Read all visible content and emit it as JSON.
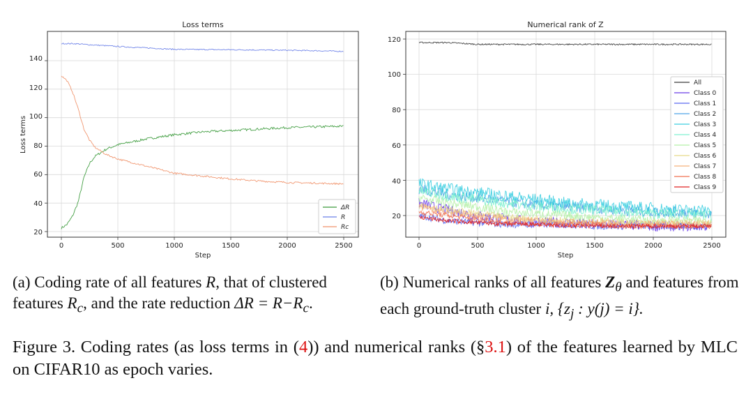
{
  "charts": {
    "left": {
      "title": "Loss terms",
      "xlabel": "Step",
      "ylabel": "Loss terms",
      "xticks": [
        "0",
        "500",
        "1000",
        "1500",
        "2000",
        "2500"
      ],
      "yticks": [
        "20",
        "40",
        "60",
        "80",
        "100",
        "120",
        "140"
      ],
      "legend": [
        "ΔR",
        "R",
        "Rc"
      ]
    },
    "right": {
      "title": "Numerical rank of Z",
      "xlabel": "Step",
      "xticks": [
        "0",
        "500",
        "1000",
        "1500",
        "2000",
        "2500"
      ],
      "yticks": [
        "20",
        "40",
        "60",
        "80",
        "100",
        "120"
      ],
      "legend": [
        "All",
        "Class 0",
        "Class 1",
        "Class 2",
        "Class 3",
        "Class 4",
        "Class 5",
        "Class 6",
        "Class 7",
        "Class 8",
        "Class 9"
      ]
    }
  },
  "chart_data": [
    {
      "type": "line",
      "title": "Loss terms",
      "xlabel": "Step",
      "ylabel": "Loss terms",
      "xlim": [
        0,
        2500
      ],
      "ylim": [
        18,
        158
      ],
      "grid": true,
      "legend_position": "bottom-right",
      "x": [
        0,
        50,
        100,
        150,
        200,
        250,
        300,
        400,
        500,
        750,
        1000,
        1250,
        1500,
        1750,
        2000,
        2250,
        2500
      ],
      "series": [
        {
          "name": "ΔR",
          "color": "#3a9a3a",
          "values": [
            22.5,
            25,
            31,
            41,
            58,
            68,
            73,
            78,
            81,
            85,
            88,
            90,
            91,
            92,
            93,
            93.5,
            94
          ]
        },
        {
          "name": "R",
          "color": "#6a7fe8",
          "values": [
            152,
            152,
            152,
            151.8,
            151.5,
            151.2,
            151,
            150.5,
            150,
            149,
            148,
            147.8,
            147.7,
            147.5,
            147.3,
            147,
            146.5
          ]
        },
        {
          "name": "Rc",
          "color": "#f0926a",
          "values": [
            129.5,
            126,
            118,
            106,
            92,
            84,
            79,
            74,
            71,
            66,
            61,
            59,
            57,
            55.5,
            54.5,
            54,
            53.5
          ]
        }
      ]
    },
    {
      "type": "line",
      "title": "Numerical rank of Z",
      "xlabel": "Step",
      "xlim": [
        0,
        2500
      ],
      "ylim": [
        9,
        122
      ],
      "grid": true,
      "legend_position": "top-right",
      "x": [
        0,
        250,
        500,
        750,
        1000,
        1250,
        1500,
        1750,
        2000,
        2250,
        2500
      ],
      "series": [
        {
          "name": "All",
          "color": "#3a3a3a",
          "values": [
            118,
            118,
            117,
            117,
            117,
            117,
            117,
            117,
            117,
            117,
            117
          ]
        },
        {
          "name": "Class 0",
          "color": "#6a3de8",
          "values": [
            27,
            23,
            20,
            18,
            16,
            16,
            15,
            15,
            14,
            14,
            14
          ]
        },
        {
          "name": "Class 1",
          "color": "#5a6af0",
          "values": [
            20,
            17,
            16,
            15,
            15,
            15,
            14,
            14,
            14,
            14,
            14
          ]
        },
        {
          "name": "Class 2",
          "color": "#4da3e6",
          "values": [
            35,
            32,
            30,
            28,
            26,
            25,
            24,
            23,
            22,
            22,
            21
          ]
        },
        {
          "name": "Class 3",
          "color": "#3ccfe0",
          "values": [
            38,
            35,
            33,
            31,
            29,
            27,
            26,
            25,
            24,
            23,
            23
          ]
        },
        {
          "name": "Class 4",
          "color": "#7ff0d0",
          "values": [
            34,
            31,
            29,
            27,
            25,
            24,
            23,
            22,
            21,
            21,
            20
          ]
        },
        {
          "name": "Class 5",
          "color": "#b5f0a8",
          "values": [
            30,
            27,
            25,
            22,
            21,
            20,
            19,
            18,
            17,
            17,
            17
          ]
        },
        {
          "name": "Class 6",
          "color": "#e6d98a",
          "values": [
            26,
            23,
            21,
            19,
            18,
            17,
            17,
            16,
            16,
            16,
            16
          ]
        },
        {
          "name": "Class 7",
          "color": "#f5b07a",
          "values": [
            25,
            22,
            20,
            18,
            17,
            16,
            16,
            15,
            15,
            15,
            15
          ]
        },
        {
          "name": "Class 8",
          "color": "#f07050",
          "values": [
            22,
            20,
            18,
            16,
            15,
            15,
            15,
            14,
            14,
            14,
            14
          ]
        },
        {
          "name": "Class 9",
          "color": "#e02020",
          "values": [
            19,
            17,
            16,
            15,
            15,
            14,
            14,
            14,
            14,
            14,
            14
          ]
        }
      ]
    }
  ],
  "captions": {
    "a": {
      "t1": "(a) Coding rate of all features ",
      "R": "R",
      "t2": ", that of clustered features ",
      "Rc_base": "R",
      "Rc_sub": "c",
      "t3": ", and the rate reduction ",
      "delta": "ΔR = R−R",
      "delta_sub": "c",
      "t4": "."
    },
    "b": {
      "t1": "(b) Numerical ranks of all features ",
      "Z": "Z",
      "Z_sub": "θ",
      "t2": " and features from each ground-truth cluster ",
      "i": "i",
      "set": ", {z",
      "set_sub": "j",
      "set2": " : y(j) = i}."
    }
  },
  "figure": {
    "t1": "Figure 3.  Coding rates (as loss terms in (",
    "ref1": "4",
    "t2": ")) and numerical ranks (§",
    "ref2": "3.1",
    "t3": ") of the features learned by MLC on CIFAR10 as epoch varies."
  }
}
